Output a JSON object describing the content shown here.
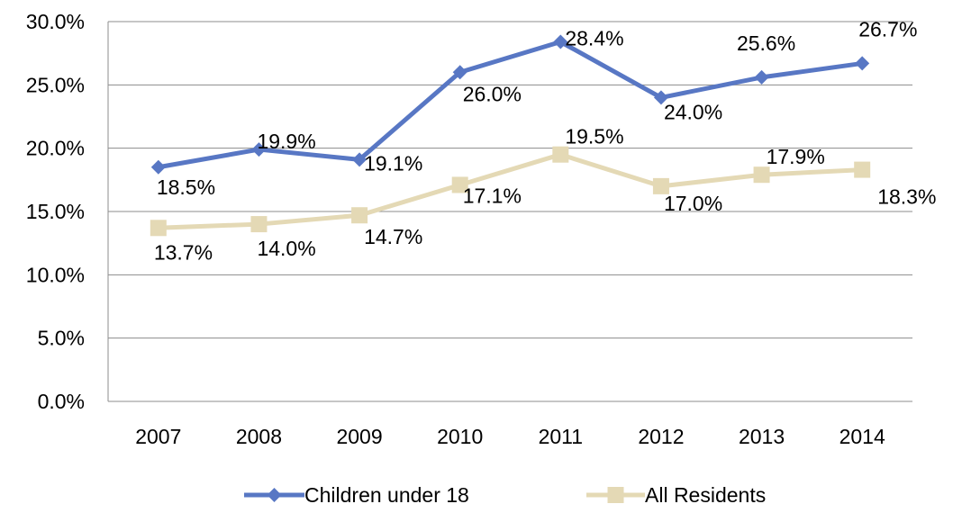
{
  "chart_data": {
    "type": "line",
    "title": "",
    "xlabel": "",
    "ylabel": "",
    "categories": [
      "2007",
      "2008",
      "2009",
      "2010",
      "2011",
      "2012",
      "2013",
      "2014"
    ],
    "ylim": [
      0,
      30
    ],
    "yticks": [
      0,
      5,
      10,
      15,
      20,
      25,
      30
    ],
    "ytick_labels": [
      "0.0%",
      "5.0%",
      "10.0%",
      "15.0%",
      "20.0%",
      "25.0%",
      "30.0%"
    ],
    "grid": "horizontal",
    "legend_position": "bottom",
    "series": [
      {
        "name": "Children under 18",
        "color": "#5877C4",
        "marker": "diamond",
        "values": [
          18.5,
          19.9,
          19.1,
          26.0,
          28.4,
          24.0,
          25.6,
          26.7
        ],
        "labels": [
          "18.5%",
          "19.9%",
          "19.1%",
          "26.0%",
          "28.4%",
          "24.0%",
          "25.6%",
          "26.7%"
        ]
      },
      {
        "name": "All Residents",
        "color": "#E4D9B5",
        "marker": "square",
        "values": [
          13.7,
          14.0,
          14.7,
          17.1,
          19.5,
          17.0,
          17.9,
          18.3
        ],
        "labels": [
          "13.7%",
          "14.0%",
          "14.7%",
          "17.1%",
          "19.5%",
          "17.0%",
          "17.9%",
          "18.3%"
        ]
      }
    ]
  }
}
